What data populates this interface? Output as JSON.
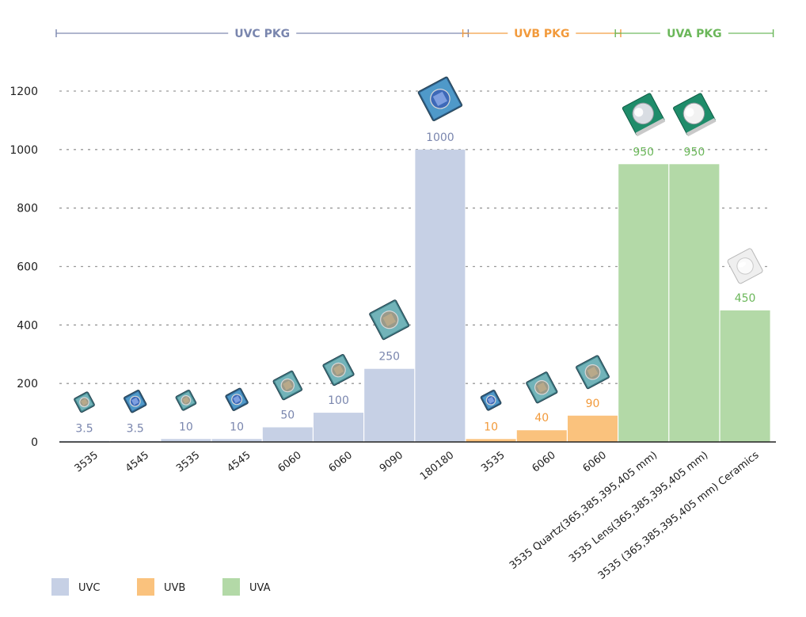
{
  "chart_data": {
    "type": "bar",
    "title": "",
    "xlabel": "",
    "ylabel": "",
    "ylim": [
      0,
      1200
    ],
    "yticks": [
      0,
      200,
      400,
      600,
      800,
      1000,
      1200
    ],
    "grid": "dashed horizontal",
    "legend_position": "bottom-left",
    "groups": [
      {
        "label": "UVC PKG",
        "series": "UVC",
        "start": 0,
        "end": 7
      },
      {
        "label": "UVB PKG",
        "series": "UVB",
        "start": 8,
        "end": 10
      },
      {
        "label": "UVA PKG",
        "series": "UVA",
        "start": 11,
        "end": 13
      }
    ],
    "series_styles": [
      {
        "name": "UVC",
        "bar_color": "#c6d0e5",
        "label_color": "#7a86ae"
      },
      {
        "name": "UVB",
        "bar_color": "#fac27d",
        "label_color": "#f29a3b"
      },
      {
        "name": "UVA",
        "bar_color": "#b3d9a7",
        "label_color": "#6bb75a"
      }
    ],
    "bars": [
      {
        "category": "3535",
        "value": 3.5,
        "label": "3.5",
        "series": "UVC"
      },
      {
        "category": "4545",
        "value": 3.5,
        "label": "3.5",
        "series": "UVC"
      },
      {
        "category": "3535",
        "value": 10,
        "label": "10",
        "series": "UVC"
      },
      {
        "category": "4545",
        "value": 10,
        "label": "10",
        "series": "UVC"
      },
      {
        "category": "6060",
        "value": 50,
        "label": "50",
        "series": "UVC"
      },
      {
        "category": "6060",
        "value": 100,
        "label": "100",
        "series": "UVC"
      },
      {
        "category": "9090",
        "value": 250,
        "label": "250",
        "series": "UVC"
      },
      {
        "category": "180180",
        "value": 1000,
        "label": "1000",
        "series": "UVC"
      },
      {
        "category": "3535",
        "value": 10,
        "label": "10",
        "series": "UVB"
      },
      {
        "category": "6060",
        "value": 40,
        "label": "40",
        "series": "UVB"
      },
      {
        "category": "6060",
        "value": 90,
        "label": "90",
        "series": "UVB"
      },
      {
        "category": "3535 Quartz(365,385,395,405 mm)",
        "value": 950,
        "label": "950",
        "series": "UVA"
      },
      {
        "category": "3535 Lens(365,385,395,405 mm)",
        "value": 950,
        "label": "950",
        "series": "UVA"
      },
      {
        "category": "3535 (365,385,395,405 mm) Ceramics",
        "value": 450,
        "label": "450",
        "series": "UVA"
      }
    ],
    "legend": [
      {
        "name": "UVC",
        "color": "#c6d0e5"
      },
      {
        "name": "UVB",
        "color": "#fac27d"
      },
      {
        "name": "UVA",
        "color": "#b3d9a7"
      }
    ],
    "package_images": [
      {
        "bar_index": 0,
        "style": "uvc"
      },
      {
        "bar_index": 1,
        "style": "uvc-blue"
      },
      {
        "bar_index": 2,
        "style": "uvc"
      },
      {
        "bar_index": 3,
        "style": "uvc-blue"
      },
      {
        "bar_index": 4,
        "style": "uvc"
      },
      {
        "bar_index": 5,
        "style": "uvc"
      },
      {
        "bar_index": 6,
        "style": "uvc"
      },
      {
        "bar_index": 7,
        "style": "uvc-blue"
      },
      {
        "bar_index": 8,
        "style": "uvc-blue"
      },
      {
        "bar_index": 9,
        "style": "uvc"
      },
      {
        "bar_index": 10,
        "style": "uvc"
      },
      {
        "bar_index": 11,
        "style": "uva-quartz"
      },
      {
        "bar_index": 12,
        "style": "uva-lens"
      },
      {
        "bar_index": 13,
        "style": "uva-ceramic"
      }
    ]
  }
}
